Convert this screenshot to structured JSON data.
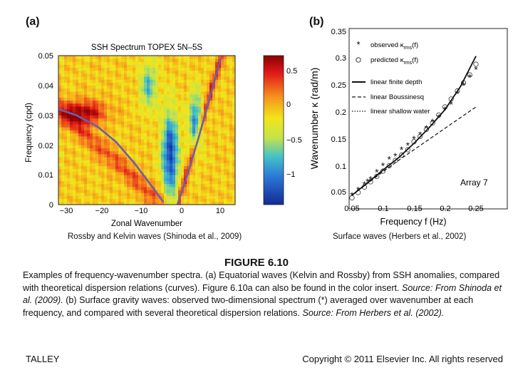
{
  "panel_a": {
    "letter": "(a)",
    "title": "SSH Spectrum TOPEX 5N–5S",
    "xlabel": "Zonal Wavenumber",
    "ylabel": "Frequency (cpd)",
    "xticks": [
      "−30",
      "−20",
      "−10",
      "0",
      "10"
    ],
    "yticks": [
      "0",
      "0.01",
      "0.02",
      "0.03",
      "0.04",
      "0.05"
    ],
    "colorbar_ticks": [
      "0.5",
      "0",
      "−0.5",
      "−1"
    ],
    "source": "Rossby and Kelvin waves (Shinoda et al., 2009)"
  },
  "panel_b": {
    "letter": "(b)",
    "xlabel": "Frequency f (Hz)",
    "ylabel": "Wavenumber κ (rad/m)",
    "xticks": [
      "0.05",
      "0.1",
      "0.15",
      "0.2",
      "0.25"
    ],
    "yticks": [
      "0.05",
      "0.1",
      "0.15",
      "0.2",
      "0.25",
      "0.3",
      "0.35"
    ],
    "annotation": "Array 7",
    "legend": [
      {
        "symbol": "*",
        "main": "observed κ",
        "sub": "rms",
        "suffix": "(f)"
      },
      {
        "symbol": "o",
        "main": "predicted κ",
        "sub": "rms",
        "suffix": "(f)"
      },
      {
        "symbol": "solid",
        "main": "linear finite depth"
      },
      {
        "symbol": "dashed",
        "main": "linear Boussinesq"
      },
      {
        "symbol": "dotted",
        "main": "linear shallow water"
      }
    ],
    "source": "Surface waves (Herbers et al., 2002)"
  },
  "chart_data": [
    {
      "type": "heatmap",
      "title": "SSH Spectrum TOPEX 5N–5S",
      "xlabel": "Zonal Wavenumber",
      "ylabel": "Frequency (cpd)",
      "xlim": [
        -33,
        16
      ],
      "ylim": [
        0,
        0.05
      ],
      "colorbar_range": [
        -1.3,
        0.7
      ],
      "curves": [
        {
          "kind": "Rossby dispersion",
          "points": [
            [
              -33,
              0.032
            ],
            [
              -28,
              0.03
            ],
            [
              -22,
              0.026
            ],
            [
              -17,
              0.021
            ],
            [
              -12,
              0.014
            ],
            [
              -7,
              0.006
            ],
            [
              -4,
              0.001
            ]
          ]
        },
        {
          "kind": "Kelvin dispersion",
          "points": [
            [
              0,
              0.0
            ],
            [
              3,
              0.011
            ],
            [
              6,
              0.023
            ],
            [
              9,
              0.036
            ],
            [
              12,
              0.049
            ]
          ]
        }
      ]
    },
    {
      "type": "scatter",
      "xlabel": "Frequency f (Hz)",
      "ylabel": "Wavenumber κ (rad/m)",
      "xlim": [
        0.05,
        0.25
      ],
      "ylim": [
        0.05,
        0.35
      ],
      "series": [
        {
          "name": "observed κ rms (f)",
          "marker": "*",
          "x": [
            0.05,
            0.06,
            0.07,
            0.075,
            0.08,
            0.09,
            0.1,
            0.11,
            0.12,
            0.13,
            0.14,
            0.15,
            0.16,
            0.17,
            0.18,
            0.19,
            0.2,
            0.21,
            0.22,
            0.23,
            0.24,
            0.25
          ],
          "y": [
            0.045,
            0.055,
            0.065,
            0.07,
            0.075,
            0.088,
            0.1,
            0.112,
            0.118,
            0.13,
            0.138,
            0.15,
            0.158,
            0.17,
            0.182,
            0.19,
            0.205,
            0.215,
            0.235,
            0.25,
            0.265,
            0.28
          ]
        },
        {
          "name": "predicted κ rms (f)",
          "marker": "o",
          "x": [
            0.05,
            0.06,
            0.07,
            0.08,
            0.09,
            0.1,
            0.11,
            0.12,
            0.13,
            0.14,
            0.15,
            0.16,
            0.17,
            0.18,
            0.19,
            0.2,
            0.21,
            0.22,
            0.23,
            0.24,
            0.25
          ],
          "y": [
            0.04,
            0.05,
            0.06,
            0.07,
            0.08,
            0.09,
            0.1,
            0.11,
            0.12,
            0.13,
            0.145,
            0.155,
            0.168,
            0.18,
            0.195,
            0.21,
            0.225,
            0.24,
            0.255,
            0.27,
            0.29
          ]
        },
        {
          "name": "linear finite depth",
          "line": "solid",
          "x": [
            0.05,
            0.075,
            0.1,
            0.125,
            0.15,
            0.175,
            0.2,
            0.225,
            0.25
          ],
          "y": [
            0.045,
            0.068,
            0.092,
            0.115,
            0.142,
            0.172,
            0.205,
            0.248,
            0.305
          ]
        },
        {
          "name": "linear Boussinesq",
          "line": "dashed",
          "x": [
            0.05,
            0.075,
            0.1,
            0.125,
            0.15,
            0.175,
            0.2,
            0.225,
            0.25
          ],
          "y": [
            0.045,
            0.067,
            0.089,
            0.11,
            0.13,
            0.15,
            0.17,
            0.19,
            0.21
          ]
        }
      ]
    }
  ],
  "figure_title": "FIGURE 6.10",
  "caption": {
    "p1": "Examples of frequency-wavenumber spectra. (a) Equatorial waves (Kelvin and Rossby) from SSH anomalies, compared with theoretical dispersion relations (curves). Figure 6.10a can also be found in the color insert. ",
    "src1": "Source: From Shinoda et al. (2009).",
    "p2": " (b) Surface gravity waves: observed two-dimensional spectrum (*) averaged over wavenumber at each frequency, and compared with several theoretical dispersion relations. ",
    "src2": "Source: From Herbers et al. (2002)."
  },
  "footer": {
    "left": "TALLEY",
    "right": "Copyright © 2011 Elsevier Inc. All rights reserved"
  }
}
